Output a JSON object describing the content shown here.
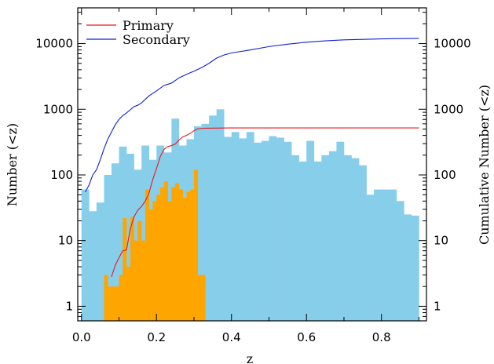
{
  "chart_data": {
    "type": "bar",
    "xlabel": "z",
    "ylabel": "Number (<z)",
    "y2label": "Cumulative Number (<z)",
    "xlim": [
      -0.01,
      0.92
    ],
    "ylim": [
      0.6,
      35000
    ],
    "yscale": "log",
    "x_ticks": [
      "0.0",
      "0.2",
      "0.4",
      "0.6",
      "0.8"
    ],
    "y_ticks": [
      "1",
      "10",
      "100",
      "1000",
      "10000"
    ],
    "y2_ticks": [
      "1",
      "10",
      "100",
      "1000",
      "10000"
    ],
    "legend_position": "top-left",
    "histograms": [
      {
        "color": "#87ceeb",
        "bin_width": 0.02,
        "bin_starts": [
          0.0,
          0.02,
          0.04,
          0.06,
          0.08,
          0.1,
          0.12,
          0.14,
          0.16,
          0.18,
          0.2,
          0.22,
          0.24,
          0.26,
          0.28,
          0.3,
          0.32,
          0.34,
          0.36,
          0.38,
          0.4,
          0.42,
          0.44,
          0.46,
          0.48,
          0.5,
          0.52,
          0.54,
          0.56,
          0.58,
          0.6,
          0.62,
          0.64,
          0.66,
          0.68,
          0.7,
          0.72,
          0.74,
          0.76,
          0.78,
          0.8,
          0.82,
          0.84,
          0.86,
          0.88
        ],
        "values": [
          60,
          28,
          38,
          100,
          150,
          270,
          210,
          120,
          280,
          170,
          280,
          220,
          720,
          280,
          350,
          550,
          600,
          800,
          1000,
          380,
          450,
          360,
          450,
          310,
          330,
          390,
          370,
          320,
          200,
          160,
          330,
          160,
          200,
          230,
          320,
          200,
          180,
          140,
          50,
          60,
          60,
          60,
          40,
          25,
          24
        ]
      },
      {
        "color": "#ffa500",
        "bin_width": 0.01,
        "bin_starts": [
          0.06,
          0.07,
          0.08,
          0.09,
          0.1,
          0.11,
          0.12,
          0.13,
          0.14,
          0.15,
          0.16,
          0.17,
          0.18,
          0.19,
          0.2,
          0.21,
          0.22,
          0.23,
          0.24,
          0.25,
          0.26,
          0.27,
          0.28,
          0.29,
          0.3,
          0.31,
          0.32
        ],
        "values": [
          3,
          2,
          2,
          2,
          3,
          22,
          4,
          23,
          10,
          20,
          10,
          60,
          30,
          40,
          50,
          65,
          80,
          40,
          65,
          75,
          60,
          45,
          55,
          60,
          120,
          3,
          3
        ]
      }
    ],
    "series": [
      {
        "name": "Primary",
        "color": "#e8171f",
        "x": [
          0.08,
          0.09,
          0.1,
          0.11,
          0.12,
          0.13,
          0.14,
          0.15,
          0.16,
          0.17,
          0.18,
          0.19,
          0.2,
          0.21,
          0.22,
          0.23,
          0.24,
          0.25,
          0.26,
          0.27,
          0.28,
          0.29,
          0.3,
          0.31,
          0.32,
          0.33,
          0.4,
          0.5,
          0.6,
          0.7,
          0.8,
          0.9
        ],
        "y": [
          2.8,
          4.2,
          5.5,
          7,
          7.2,
          15,
          23,
          29,
          33,
          40,
          53,
          85,
          125,
          190,
          245,
          270,
          280,
          295,
          340,
          380,
          400,
          430,
          470,
          505,
          510,
          515,
          520,
          520,
          520,
          520,
          520,
          520
        ]
      },
      {
        "name": "Secondary",
        "color": "#1020d0",
        "x": [
          0.01,
          0.02,
          0.03,
          0.04,
          0.05,
          0.06,
          0.07,
          0.08,
          0.09,
          0.1,
          0.11,
          0.12,
          0.13,
          0.14,
          0.15,
          0.16,
          0.18,
          0.2,
          0.22,
          0.24,
          0.26,
          0.28,
          0.3,
          0.32,
          0.34,
          0.36,
          0.38,
          0.4,
          0.45,
          0.5,
          0.55,
          0.6,
          0.65,
          0.7,
          0.75,
          0.8,
          0.85,
          0.9
        ],
        "y": [
          55,
          70,
          100,
          120,
          170,
          250,
          350,
          450,
          580,
          700,
          800,
          880,
          980,
          1100,
          1150,
          1250,
          1600,
          1900,
          2300,
          2500,
          3000,
          3400,
          3800,
          4300,
          5000,
          6000,
          6700,
          7200,
          8000,
          9000,
          9800,
          10500,
          11000,
          11400,
          11600,
          11800,
          11900,
          12000
        ]
      }
    ]
  }
}
